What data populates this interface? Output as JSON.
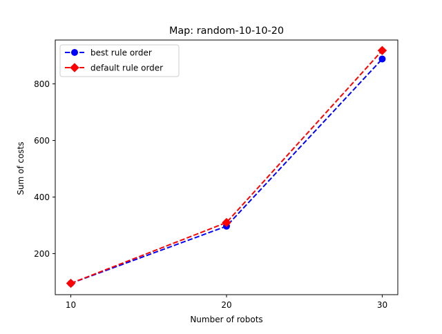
{
  "chart_data": {
    "type": "line",
    "title": "Map: random-10-10-20",
    "xlabel": "Number of robots",
    "ylabel": "Sum of costs",
    "x": [
      10,
      20,
      30
    ],
    "xlim": [
      9.0,
      31.0
    ],
    "ylim": [
      55,
      955
    ],
    "xticks": [
      10,
      20,
      30
    ],
    "yticks": [
      200,
      400,
      600,
      800
    ],
    "grid": false,
    "legend_position": "upper-left",
    "series": [
      {
        "name": "best rule order",
        "values": [
          95,
          297,
          888
        ],
        "color": "#0000ff",
        "marker": "circle",
        "linestyle": "dashed"
      },
      {
        "name": "default rule order",
        "values": [
          95,
          310,
          918
        ],
        "color": "#ff0000",
        "marker": "diamond",
        "linestyle": "dashed"
      }
    ]
  }
}
